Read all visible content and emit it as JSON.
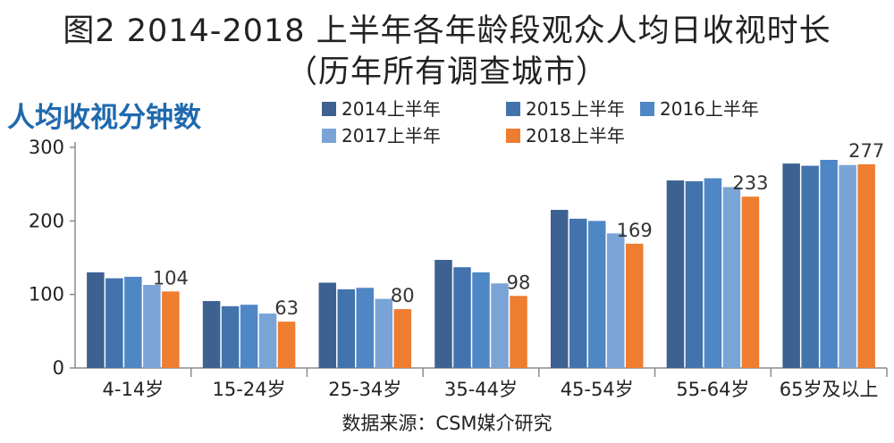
{
  "header": {
    "title_line1": "图2 2014-2018 上半年各年龄段观众人均日收视时长",
    "title_line2": "（历年所有调查城市）"
  },
  "chart_data": {
    "type": "bar",
    "ylabel": "人均收视分钟数",
    "ylim": [
      0,
      300
    ],
    "yticks": [
      0,
      100,
      200,
      300
    ],
    "grid": false,
    "legend_position": "top",
    "categories": [
      "4-14岁",
      "15-24岁",
      "25-34岁",
      "35-44岁",
      "45-54岁",
      "55-64岁",
      "65岁及以上"
    ],
    "series": [
      {
        "name": "2014上半年",
        "color": "#3d6191",
        "values": [
          130,
          91,
          116,
          147,
          215,
          255,
          278
        ]
      },
      {
        "name": "2015上半年",
        "color": "#4273ad",
        "values": [
          122,
          84,
          107,
          137,
          203,
          254,
          275
        ]
      },
      {
        "name": "2016上半年",
        "color": "#4f86c6",
        "values": [
          124,
          86,
          109,
          130,
          200,
          258,
          283
        ]
      },
      {
        "name": "2017上半年",
        "color": "#7aa4d6",
        "values": [
          113,
          74,
          94,
          115,
          183,
          246,
          276
        ]
      },
      {
        "name": "2018上半年",
        "color": "#ee7d30",
        "values": [
          104,
          63,
          80,
          98,
          169,
          233,
          277
        ],
        "labels": [
          "104",
          "63",
          "80",
          "98",
          "169",
          "233",
          "277"
        ]
      }
    ],
    "source": "数据来源：CSM媒介研究"
  }
}
